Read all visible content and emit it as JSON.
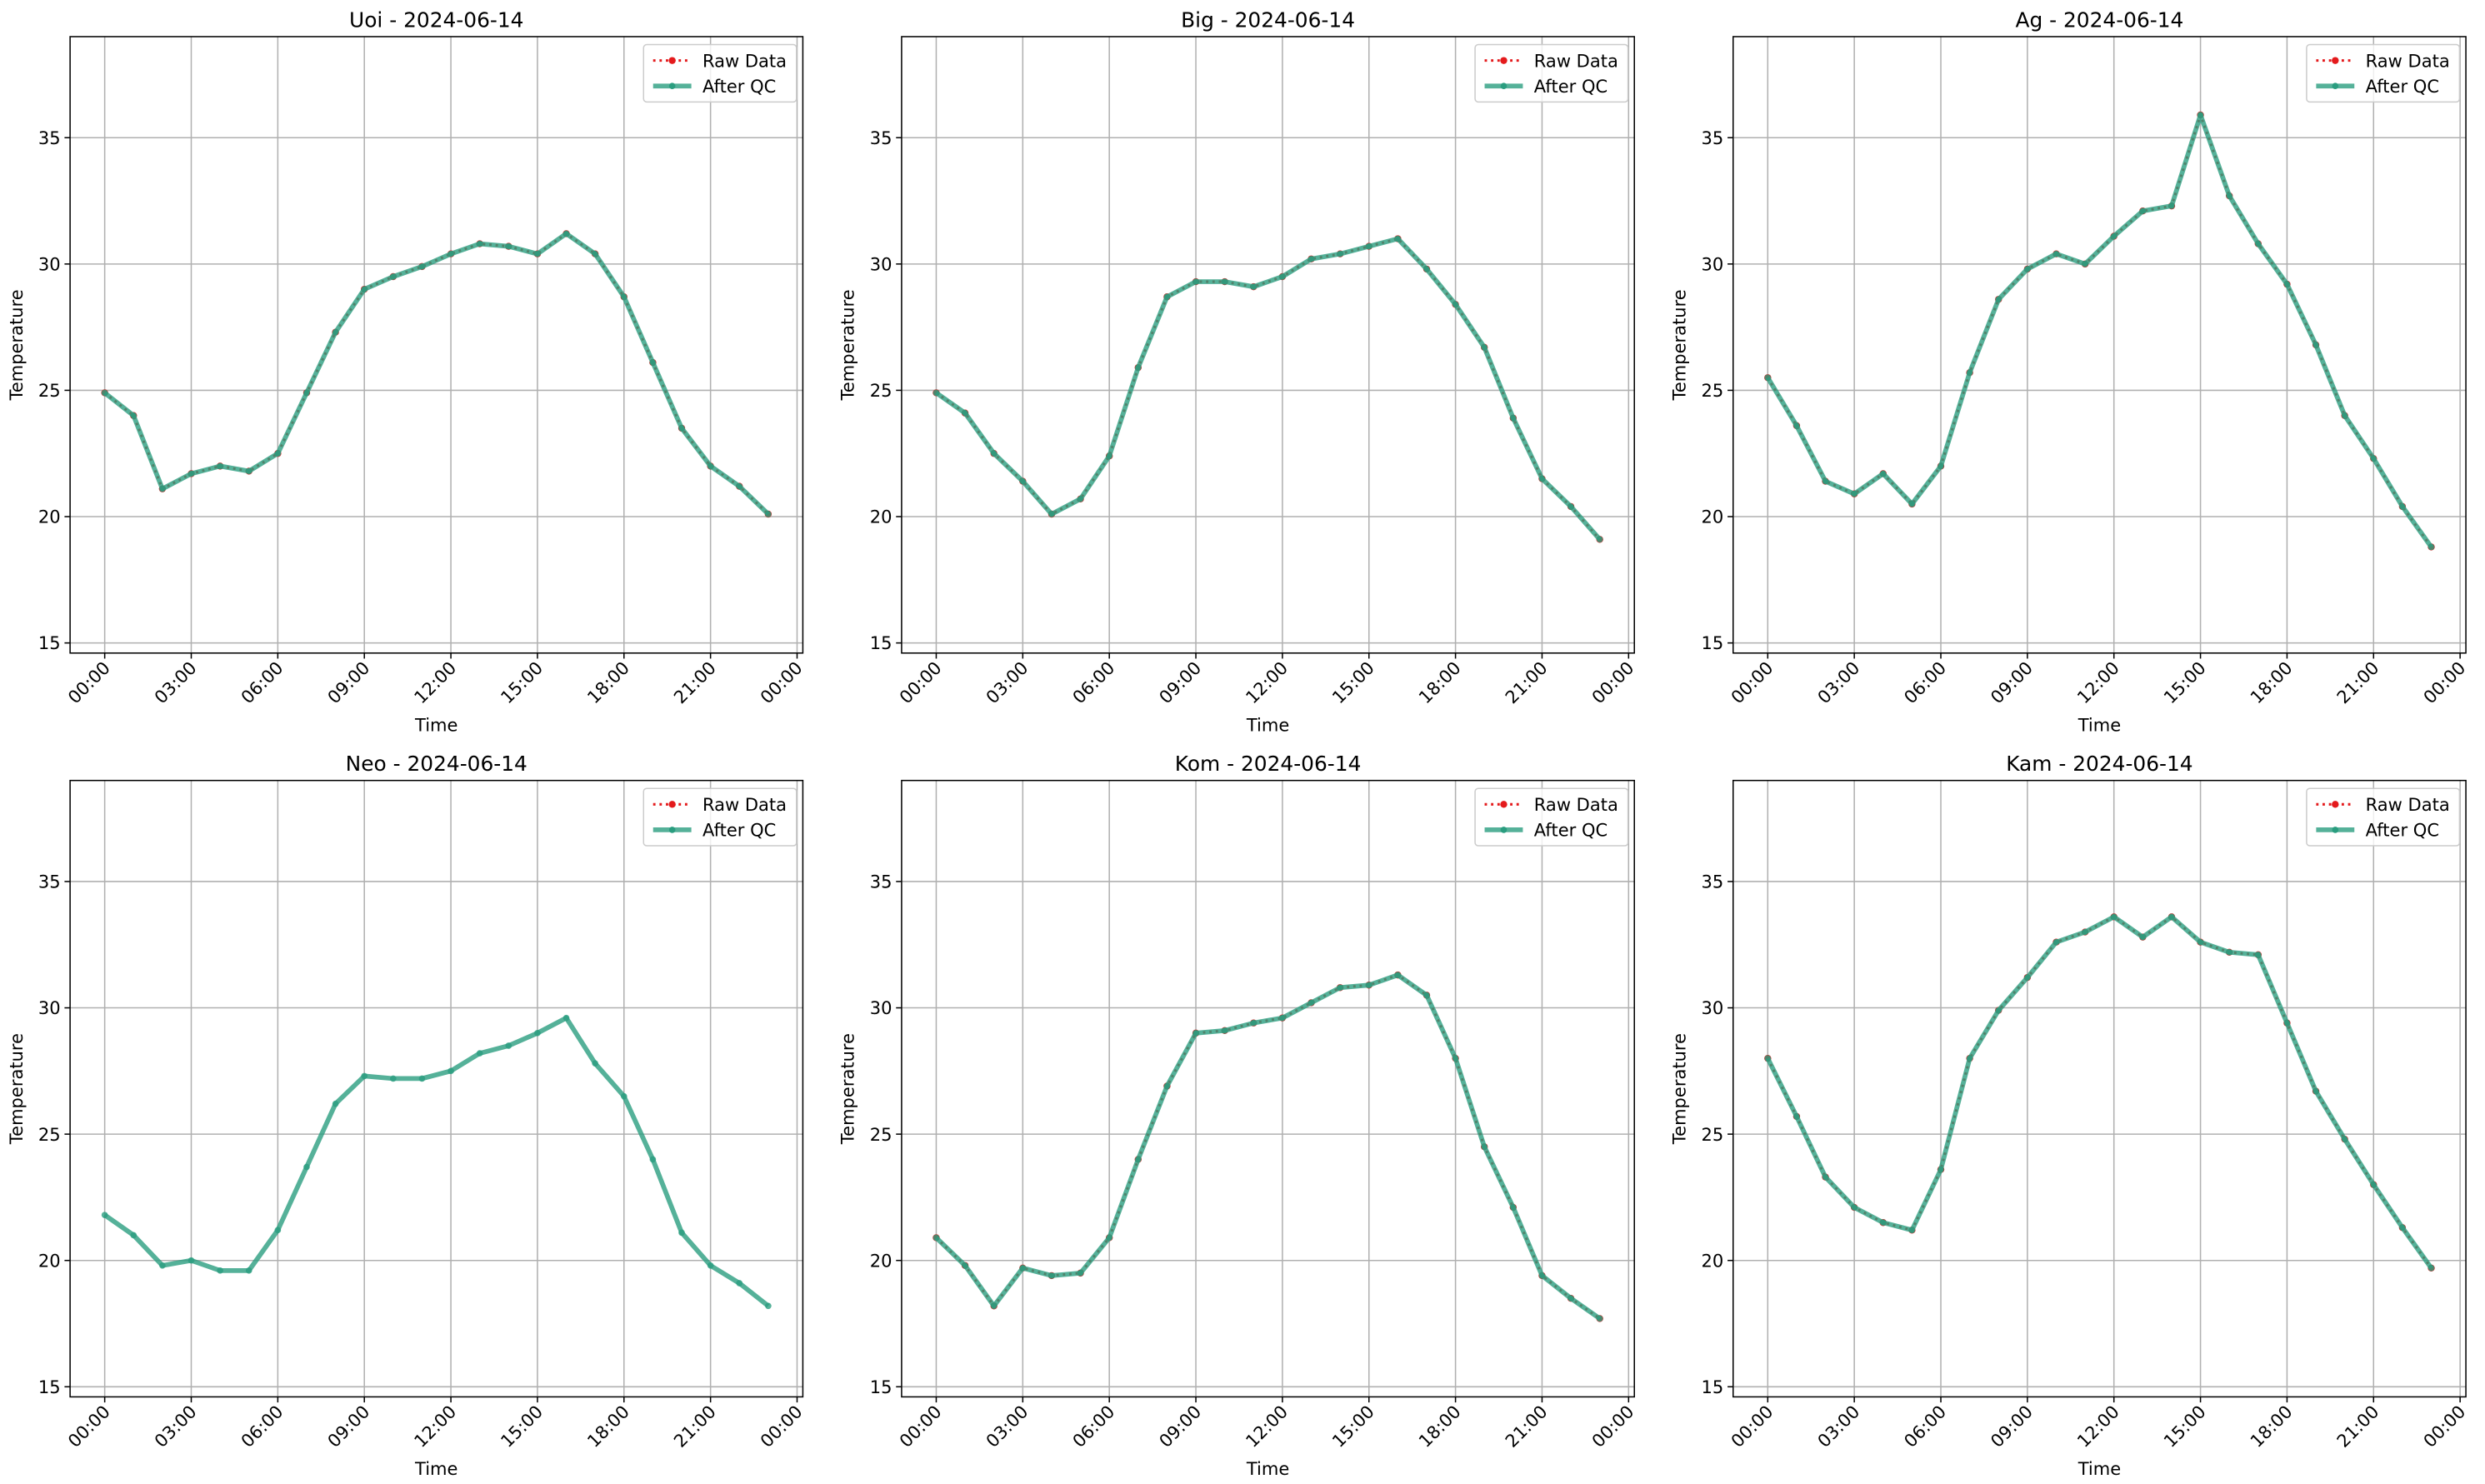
{
  "chart_data": [
    {
      "type": "line",
      "title": "Uoi - 2024-06-14",
      "xlabel": "Time",
      "ylabel": "Temperature",
      "x": [
        0,
        1,
        2,
        3,
        4,
        5,
        6,
        7,
        8,
        9,
        10,
        11,
        12,
        13,
        14,
        15,
        16,
        17,
        18,
        19,
        20,
        21,
        22,
        23
      ],
      "series": [
        {
          "name": "Raw Data",
          "color": "#e41a1c",
          "values": [
            24.9,
            24.0,
            21.1,
            21.7,
            22.0,
            21.8,
            22.5,
            24.9,
            27.3,
            29.0,
            29.5,
            29.9,
            30.4,
            30.8,
            30.7,
            30.4,
            31.2,
            30.4,
            28.7,
            26.1,
            23.5,
            22.0,
            21.2,
            20.1
          ]
        },
        {
          "name": "After QC",
          "color": "#2a9d7f",
          "values": [
            24.9,
            24.0,
            21.1,
            21.7,
            22.0,
            21.8,
            22.5,
            24.9,
            27.3,
            29.0,
            29.5,
            29.9,
            30.4,
            30.8,
            30.7,
            30.4,
            31.2,
            30.4,
            28.7,
            26.1,
            23.5,
            22.0,
            21.2,
            20.1
          ]
        }
      ],
      "xlim": [
        -1.2,
        24.2
      ],
      "ylim": [
        14.6,
        39.0
      ],
      "xticks": [
        {
          "value": 0,
          "label": "00:00"
        },
        {
          "value": 3,
          "label": "03:00"
        },
        {
          "value": 6,
          "label": "06:00"
        },
        {
          "value": 9,
          "label": "09:00"
        },
        {
          "value": 12,
          "label": "12:00"
        },
        {
          "value": 15,
          "label": "15:00"
        },
        {
          "value": 18,
          "label": "18:00"
        },
        {
          "value": 21,
          "label": "21:00"
        },
        {
          "value": 24,
          "label": "00:00"
        }
      ],
      "yticks": [
        15,
        20,
        25,
        30,
        35
      ],
      "grid": true,
      "legend": "upper right"
    },
    {
      "type": "line",
      "title": "Big - 2024-06-14",
      "xlabel": "Time",
      "ylabel": "Temperature",
      "x": [
        0,
        1,
        2,
        3,
        4,
        5,
        6,
        7,
        8,
        9,
        10,
        11,
        12,
        13,
        14,
        15,
        16,
        17,
        18,
        19,
        20,
        21,
        22,
        23
      ],
      "series": [
        {
          "name": "Raw Data",
          "color": "#e41a1c",
          "values": [
            24.9,
            24.1,
            22.5,
            21.4,
            20.1,
            20.7,
            22.4,
            25.9,
            28.7,
            29.3,
            29.3,
            29.1,
            29.5,
            30.2,
            30.4,
            30.7,
            31.0,
            29.8,
            28.4,
            26.7,
            23.9,
            21.5,
            20.4,
            19.1
          ]
        },
        {
          "name": "After QC",
          "color": "#2a9d7f",
          "values": [
            24.9,
            24.1,
            22.5,
            21.4,
            20.1,
            20.7,
            22.4,
            25.9,
            28.7,
            29.3,
            29.3,
            29.1,
            29.5,
            30.2,
            30.4,
            30.7,
            31.0,
            29.8,
            28.4,
            26.7,
            23.9,
            21.5,
            20.4,
            19.1
          ]
        }
      ],
      "xlim": [
        -1.2,
        24.2
      ],
      "ylim": [
        14.6,
        39.0
      ],
      "xticks": [
        {
          "value": 0,
          "label": "00:00"
        },
        {
          "value": 3,
          "label": "03:00"
        },
        {
          "value": 6,
          "label": "06:00"
        },
        {
          "value": 9,
          "label": "09:00"
        },
        {
          "value": 12,
          "label": "12:00"
        },
        {
          "value": 15,
          "label": "15:00"
        },
        {
          "value": 18,
          "label": "18:00"
        },
        {
          "value": 21,
          "label": "21:00"
        },
        {
          "value": 24,
          "label": "00:00"
        }
      ],
      "yticks": [
        15,
        20,
        25,
        30,
        35
      ],
      "grid": true,
      "legend": "upper right"
    },
    {
      "type": "line",
      "title": "Ag - 2024-06-14",
      "xlabel": "Time",
      "ylabel": "Temperature",
      "x": [
        0,
        1,
        2,
        3,
        4,
        5,
        6,
        7,
        8,
        9,
        10,
        11,
        12,
        13,
        14,
        15,
        16,
        17,
        18,
        19,
        20,
        21,
        22,
        23
      ],
      "series": [
        {
          "name": "Raw Data",
          "color": "#e41a1c",
          "values": [
            25.5,
            23.6,
            21.4,
            20.9,
            21.7,
            20.5,
            22.0,
            25.7,
            28.6,
            29.8,
            30.4,
            30.0,
            31.1,
            32.1,
            32.3,
            35.9,
            32.7,
            30.8,
            29.2,
            26.8,
            24.0,
            22.3,
            20.4,
            18.8
          ]
        },
        {
          "name": "After QC",
          "color": "#2a9d7f",
          "values": [
            25.5,
            23.6,
            21.4,
            20.9,
            21.7,
            20.5,
            22.0,
            25.7,
            28.6,
            29.8,
            30.4,
            30.0,
            31.1,
            32.1,
            32.3,
            35.9,
            32.7,
            30.8,
            29.2,
            26.8,
            24.0,
            22.3,
            20.4,
            18.8
          ]
        }
      ],
      "xlim": [
        -1.2,
        24.2
      ],
      "ylim": [
        14.6,
        39.0
      ],
      "xticks": [
        {
          "value": 0,
          "label": "00:00"
        },
        {
          "value": 3,
          "label": "03:00"
        },
        {
          "value": 6,
          "label": "06:00"
        },
        {
          "value": 9,
          "label": "09:00"
        },
        {
          "value": 12,
          "label": "12:00"
        },
        {
          "value": 15,
          "label": "15:00"
        },
        {
          "value": 18,
          "label": "18:00"
        },
        {
          "value": 21,
          "label": "21:00"
        },
        {
          "value": 24,
          "label": "00:00"
        }
      ],
      "yticks": [
        15,
        20,
        25,
        30,
        35
      ],
      "grid": true,
      "legend": "upper right"
    },
    {
      "type": "line",
      "title": "Neo - 2024-06-14",
      "xlabel": "Time",
      "ylabel": "Temperature",
      "x": [
        0,
        1,
        2,
        3,
        4,
        5,
        6,
        7,
        8,
        9,
        10,
        11,
        12,
        13,
        14,
        15,
        16,
        17,
        18,
        19,
        20,
        21,
        22,
        23
      ],
      "series": [
        {
          "name": "Raw Data",
          "color": "#e41a1c",
          "values": [
            null,
            null,
            null,
            null,
            null,
            null,
            null,
            null,
            null,
            null,
            null,
            null,
            null,
            null,
            null,
            null,
            null,
            null,
            null,
            null,
            null,
            null,
            null,
            null
          ]
        },
        {
          "name": "After QC",
          "color": "#2a9d7f",
          "values": [
            21.8,
            21.0,
            19.8,
            20.0,
            19.6,
            19.6,
            21.2,
            23.7,
            26.2,
            27.3,
            27.2,
            27.2,
            27.5,
            28.2,
            28.5,
            29.0,
            29.6,
            27.8,
            26.5,
            24.0,
            21.1,
            19.8,
            19.1,
            18.2
          ]
        }
      ],
      "xlim": [
        -1.2,
        24.2
      ],
      "ylim": [
        14.6,
        39.0
      ],
      "xticks": [
        {
          "value": 0,
          "label": "00:00"
        },
        {
          "value": 3,
          "label": "03:00"
        },
        {
          "value": 6,
          "label": "06:00"
        },
        {
          "value": 9,
          "label": "09:00"
        },
        {
          "value": 12,
          "label": "12:00"
        },
        {
          "value": 15,
          "label": "15:00"
        },
        {
          "value": 18,
          "label": "18:00"
        },
        {
          "value": 21,
          "label": "21:00"
        },
        {
          "value": 24,
          "label": "00:00"
        }
      ],
      "yticks": [
        15,
        20,
        25,
        30,
        35
      ],
      "grid": true,
      "legend": "upper right"
    },
    {
      "type": "line",
      "title": "Kom - 2024-06-14",
      "xlabel": "Time",
      "ylabel": "Temperature",
      "x": [
        0,
        1,
        2,
        3,
        4,
        5,
        6,
        7,
        8,
        9,
        10,
        11,
        12,
        13,
        14,
        15,
        16,
        17,
        18,
        19,
        20,
        21,
        22,
        23
      ],
      "series": [
        {
          "name": "Raw Data",
          "color": "#e41a1c",
          "values": [
            20.9,
            19.8,
            18.2,
            19.7,
            19.4,
            19.5,
            20.9,
            24.0,
            26.9,
            29.0,
            29.1,
            29.4,
            29.6,
            30.2,
            30.8,
            30.9,
            31.3,
            30.5,
            28.0,
            24.5,
            22.1,
            19.4,
            18.5,
            17.7
          ]
        },
        {
          "name": "After QC",
          "color": "#2a9d7f",
          "values": [
            20.9,
            19.8,
            18.2,
            19.7,
            19.4,
            19.5,
            20.9,
            24.0,
            26.9,
            29.0,
            29.1,
            29.4,
            29.6,
            30.2,
            30.8,
            30.9,
            31.3,
            30.5,
            28.0,
            24.5,
            22.1,
            19.4,
            18.5,
            17.7
          ]
        }
      ],
      "xlim": [
        -1.2,
        24.2
      ],
      "ylim": [
        14.6,
        39.0
      ],
      "xticks": [
        {
          "value": 0,
          "label": "00:00"
        },
        {
          "value": 3,
          "label": "03:00"
        },
        {
          "value": 6,
          "label": "06:00"
        },
        {
          "value": 9,
          "label": "09:00"
        },
        {
          "value": 12,
          "label": "12:00"
        },
        {
          "value": 15,
          "label": "15:00"
        },
        {
          "value": 18,
          "label": "18:00"
        },
        {
          "value": 21,
          "label": "21:00"
        },
        {
          "value": 24,
          "label": "00:00"
        }
      ],
      "yticks": [
        15,
        20,
        25,
        30,
        35
      ],
      "grid": true,
      "legend": "upper right"
    },
    {
      "type": "line",
      "title": "Kam - 2024-06-14",
      "xlabel": "Time",
      "ylabel": "Temperature",
      "x": [
        0,
        1,
        2,
        3,
        4,
        5,
        6,
        7,
        8,
        9,
        10,
        11,
        12,
        13,
        14,
        15,
        16,
        17,
        18,
        19,
        20,
        21,
        22,
        23
      ],
      "series": [
        {
          "name": "Raw Data",
          "color": "#e41a1c",
          "values": [
            28.0,
            25.7,
            23.3,
            22.1,
            21.5,
            21.2,
            23.6,
            28.0,
            29.9,
            31.2,
            32.6,
            33.0,
            33.6,
            32.8,
            33.6,
            32.6,
            32.2,
            32.1,
            29.4,
            26.7,
            24.8,
            23.0,
            21.3,
            19.7
          ]
        },
        {
          "name": "After QC",
          "color": "#2a9d7f",
          "values": [
            28.0,
            25.7,
            23.3,
            22.1,
            21.5,
            21.2,
            23.6,
            28.0,
            29.9,
            31.2,
            32.6,
            33.0,
            33.6,
            32.8,
            33.6,
            32.6,
            32.2,
            32.1,
            29.4,
            26.7,
            24.8,
            23.0,
            21.3,
            19.7
          ]
        }
      ],
      "xlim": [
        -1.2,
        24.2
      ],
      "ylim": [
        14.6,
        39.0
      ],
      "xticks": [
        {
          "value": 0,
          "label": "00:00"
        },
        {
          "value": 3,
          "label": "03:00"
        },
        {
          "value": 6,
          "label": "06:00"
        },
        {
          "value": 9,
          "label": "09:00"
        },
        {
          "value": 12,
          "label": "12:00"
        },
        {
          "value": 15,
          "label": "15:00"
        },
        {
          "value": 18,
          "label": "18:00"
        },
        {
          "value": 21,
          "label": "21:00"
        },
        {
          "value": 24,
          "label": "00:00"
        }
      ],
      "yticks": [
        15,
        20,
        25,
        30,
        35
      ],
      "grid": true,
      "legend": "upper right"
    }
  ]
}
